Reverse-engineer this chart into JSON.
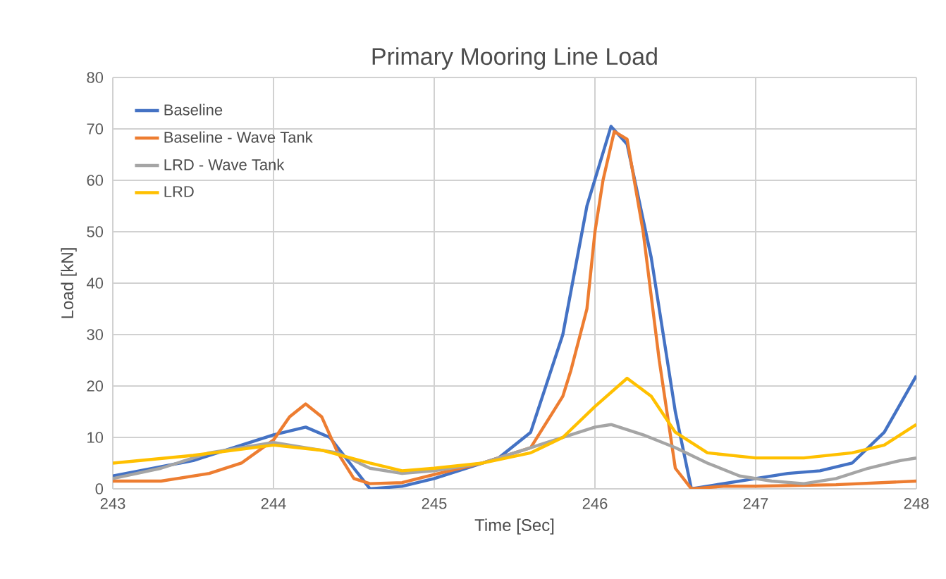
{
  "chart_data": {
    "type": "line",
    "title": "Primary Mooring Line Load",
    "xlabel": "Time [Sec]",
    "ylabel": "Load [kN]",
    "xlim": [
      243,
      248
    ],
    "xticks": [
      243,
      244,
      245,
      246,
      247,
      248
    ],
    "ylim": [
      0,
      80
    ],
    "yticks": [
      0,
      10,
      20,
      30,
      40,
      50,
      60,
      70,
      80
    ],
    "grid": true,
    "legend": "top left",
    "marker": "none",
    "line_style": "solid",
    "series": [
      {
        "name": "Baseline",
        "color": "#4472c4",
        "x": [
          243,
          243.5,
          244,
          244.2,
          244.35,
          244.5,
          244.6,
          244.8,
          245,
          245.2,
          245.4,
          245.6,
          245.8,
          245.95,
          246.1,
          246.2,
          246.35,
          246.5,
          246.6,
          246.8,
          247,
          247.2,
          247.4,
          247.6,
          247.8,
          248
        ],
        "values": [
          2.5,
          5.5,
          10.5,
          12,
          10,
          4,
          0,
          0.5,
          2,
          4,
          6,
          11,
          30,
          55,
          70.5,
          67,
          45,
          15,
          0,
          1,
          2,
          3,
          3.5,
          5,
          11,
          22
        ]
      },
      {
        "name": "Baseline - Wave Tank",
        "color": "#ed7d31",
        "x": [
          243,
          243.3,
          243.6,
          243.8,
          244,
          244.1,
          244.2,
          244.3,
          244.4,
          244.5,
          244.6,
          244.8,
          245,
          245.3,
          245.6,
          245.8,
          245.85,
          245.95,
          246,
          246.05,
          246.12,
          246.2,
          246.3,
          246.4,
          246.5,
          246.6,
          246.8,
          247,
          247.5,
          248
        ],
        "values": [
          1.5,
          1.5,
          3,
          5,
          9.5,
          14,
          16.5,
          14,
          7,
          2,
          1,
          1.2,
          2.8,
          5,
          8,
          18,
          23,
          35,
          50,
          60,
          69.5,
          68,
          50,
          25,
          4,
          0,
          0.5,
          0.5,
          0.8,
          1.5
        ]
      },
      {
        "name": "LRD - Wave Tank",
        "color": "#a5a5a5",
        "x": [
          243,
          243.3,
          243.6,
          244,
          244.2,
          244.4,
          244.6,
          244.8,
          245,
          245.3,
          245.6,
          245.8,
          246,
          246.1,
          246.3,
          246.5,
          246.7,
          246.9,
          247.1,
          247.3,
          247.5,
          247.7,
          247.9,
          248
        ],
        "values": [
          2,
          4,
          7,
          9,
          8,
          7,
          4,
          3,
          3.5,
          5,
          8,
          10,
          12,
          12.5,
          10.5,
          8,
          5,
          2.5,
          1.5,
          1,
          2,
          4,
          5.5,
          6
        ]
      },
      {
        "name": "LRD",
        "color": "#ffc000",
        "x": [
          243,
          243.5,
          244,
          244.3,
          244.6,
          244.8,
          245,
          245.3,
          245.6,
          245.8,
          246,
          246.2,
          246.35,
          246.5,
          246.7,
          247,
          247.3,
          247.6,
          247.8,
          248
        ],
        "values": [
          5,
          6.5,
          8.5,
          7.5,
          5,
          3.5,
          4,
          5,
          7,
          10,
          16,
          21.5,
          18,
          11,
          7,
          6,
          6,
          7,
          8.5,
          12.5
        ]
      }
    ]
  }
}
